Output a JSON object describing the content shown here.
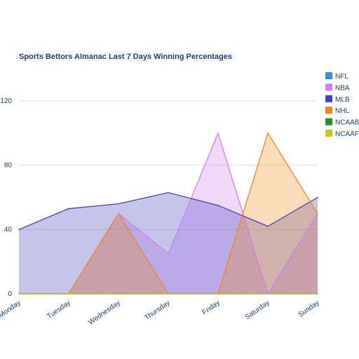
{
  "chart_data": {
    "type": "area",
    "title": "Sports Bettors Almanac Last 7 Days Winning Percentages",
    "xlabel": "",
    "ylabel": "",
    "categories": [
      "Monday",
      "Tuesday",
      "Wednesday",
      "Thursday",
      "Friday",
      "Saturday",
      "Sunday"
    ],
    "ylim": [
      0,
      130
    ],
    "yticks": [
      0,
      40,
      80,
      120
    ],
    "grid": true,
    "legend_position": "right",
    "series": [
      {
        "name": "NFL",
        "color": "#3b8be0",
        "values": [
          0,
          0,
          0,
          0,
          0,
          0,
          0
        ]
      },
      {
        "name": "NBA",
        "color": "#d27cf0",
        "values": [
          0,
          0,
          50,
          25,
          100,
          0,
          50
        ]
      },
      {
        "name": "MLB",
        "color": "#3f3fbf",
        "values": [
          40,
          53,
          56,
          63,
          55,
          42,
          60
        ]
      },
      {
        "name": "NHL",
        "color": "#f0871a",
        "values": [
          0,
          0,
          50,
          0,
          0,
          100,
          50
        ]
      },
      {
        "name": "NCAAB",
        "color": "#2e8b2e",
        "values": [
          0,
          0,
          0,
          0,
          0,
          0,
          0
        ]
      },
      {
        "name": "NCAAF",
        "color": "#c8c81a",
        "values": [
          0,
          0,
          0,
          0,
          0,
          0,
          0
        ]
      }
    ]
  }
}
